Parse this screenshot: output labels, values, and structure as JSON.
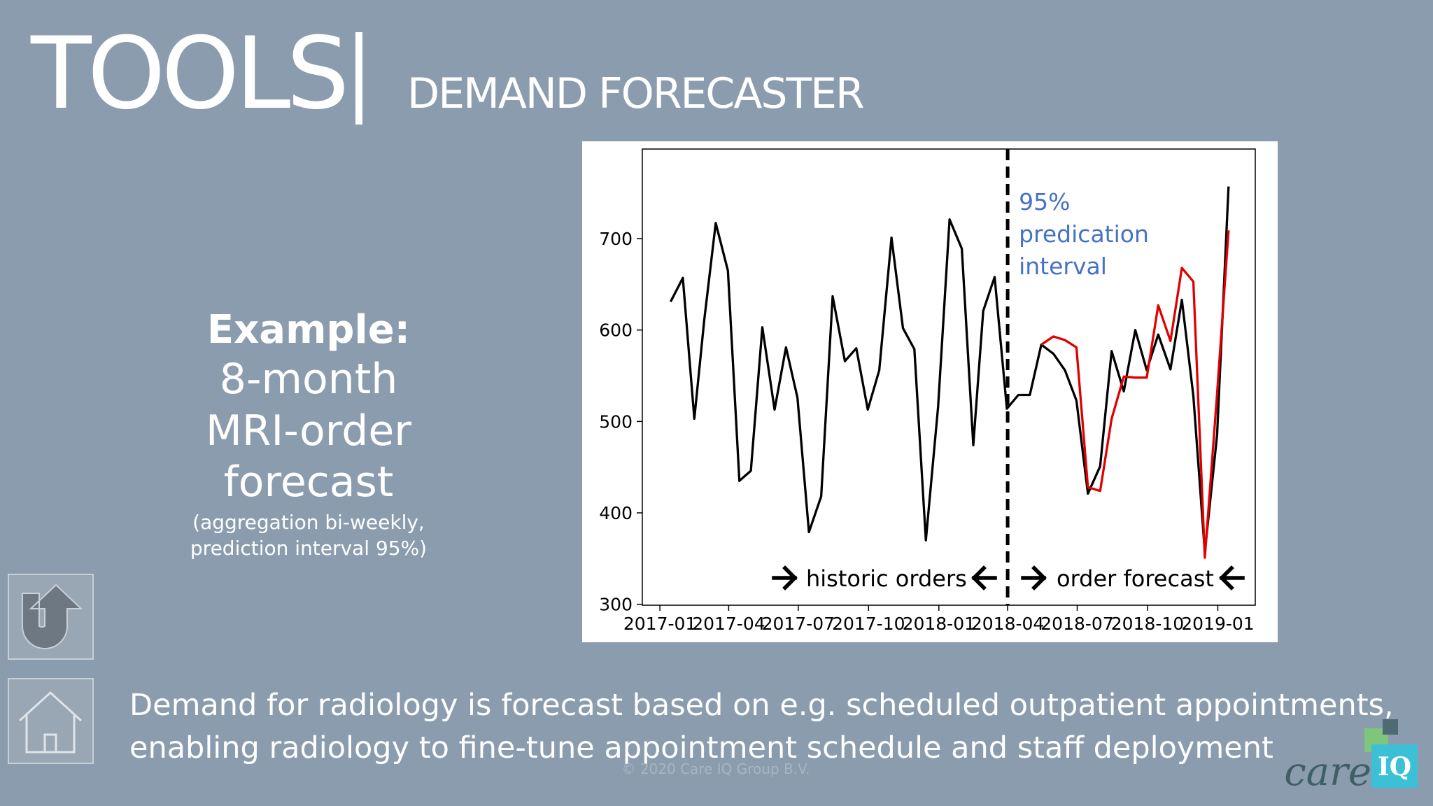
{
  "header": {
    "title": "TOOLS",
    "subtitle": "DEMAND FORECASTER"
  },
  "example": {
    "heading": "Example:",
    "lines": [
      "8-month",
      "MRI-order",
      "forecast"
    ],
    "notes": [
      "(aggregation bi-weekly,",
      "prediction interval 95%)"
    ]
  },
  "chart_data": {
    "type": "line",
    "x": [
      "2017-01-15",
      "2017-01-31",
      "2017-02-15",
      "2017-02-28",
      "2017-03-15",
      "2017-03-31",
      "2017-04-15",
      "2017-04-30",
      "2017-05-15",
      "2017-05-31",
      "2017-06-15",
      "2017-06-30",
      "2017-07-15",
      "2017-07-31",
      "2017-08-15",
      "2017-08-31",
      "2017-09-15",
      "2017-09-30",
      "2017-10-15",
      "2017-10-31",
      "2017-11-15",
      "2017-11-30",
      "2017-12-15",
      "2017-12-31",
      "2018-01-15",
      "2018-01-31",
      "2018-02-15",
      "2018-02-28",
      "2018-03-15",
      "2018-03-31",
      "2018-04-15",
      "2018-04-30",
      "2018-05-15",
      "2018-05-31",
      "2018-06-15",
      "2018-06-30",
      "2018-07-15",
      "2018-07-31",
      "2018-08-15",
      "2018-08-31",
      "2018-09-15",
      "2018-09-30",
      "2018-10-15",
      "2018-10-31",
      "2018-11-15",
      "2018-11-30",
      "2018-12-15",
      "2018-12-31",
      "2019-01-15"
    ],
    "series": [
      {
        "color": "#000000",
        "values": [
          631,
          657,
          503,
          611,
          717,
          665,
          435,
          446,
          603,
          513,
          581,
          526,
          379,
          418,
          637,
          566,
          580,
          513,
          556,
          701,
          602,
          579,
          370,
          516,
          721,
          689,
          474,
          621,
          658,
          514,
          529,
          529,
          584,
          574,
          556,
          523,
          421,
          451,
          577,
          533,
          600,
          556,
          595,
          557,
          633,
          528,
          357,
          485,
          757
        ]
      },
      {
        "color": "#e00000",
        "values": [
          null,
          null,
          null,
          null,
          null,
          null,
          null,
          null,
          null,
          null,
          null,
          null,
          null,
          null,
          null,
          null,
          null,
          null,
          null,
          null,
          null,
          null,
          null,
          null,
          null,
          null,
          null,
          null,
          null,
          null,
          null,
          null,
          584,
          593,
          589,
          581,
          428,
          424,
          503,
          549,
          548,
          548,
          627,
          588,
          668,
          653,
          351,
          530,
          709
        ]
      }
    ],
    "xlim": [
      "2016-12-09",
      "2019-02-19"
    ],
    "xticks": [
      "2017-01",
      "2017-04",
      "2017-07",
      "2017-10",
      "2018-01",
      "2018-04",
      "2018-07",
      "2018-10",
      "2019-01"
    ],
    "ylim": [
      299,
      798
    ],
    "yticks": [
      300,
      400,
      500,
      600,
      700
    ],
    "grid": false,
    "forecast_start": "2018-04",
    "annotations": {
      "interval": [
        "95%",
        "predication",
        "interval"
      ],
      "historic": "historic orders",
      "forecast": "order forecast"
    }
  },
  "footer": {
    "lines": [
      "Demand for radiology is forecast based on e.g. scheduled outpatient appointments,",
      "enabling radiology to fine-tune appointment schedule and staff deployment"
    ],
    "copyright": "© 2020 Care IQ Group B.V.",
    "logo": [
      "care",
      "IQ"
    ]
  }
}
